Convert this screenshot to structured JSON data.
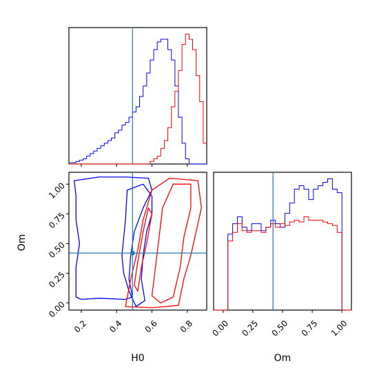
{
  "chart_data": {
    "type": "corner",
    "parameters": [
      "H0",
      "Om"
    ],
    "truth": {
      "H0": 0.49,
      "Om": 0.42
    },
    "truth_color": "#1f77b4",
    "series": [
      {
        "color": "#0000ff"
      },
      {
        "color": "#ff0000"
      }
    ],
    "panels": {
      "h0_hist": {
        "type": "histogram",
        "xlim": [
          0.13,
          0.91
        ],
        "bin_width": 0.02,
        "series_counts": [
          [
            0.5,
            0.5,
            1,
            1.5,
            2,
            3,
            4,
            5,
            6,
            7,
            8,
            9,
            10,
            12,
            13,
            15,
            16,
            18,
            20,
            22,
            26,
            30,
            35,
            40,
            44,
            47,
            48,
            48,
            44,
            40,
            30,
            18,
            8,
            2,
            0,
            0,
            0,
            0,
            0
          ],
          [
            0,
            0,
            0,
            0,
            0,
            0,
            0,
            0,
            0,
            0,
            0,
            0,
            0,
            0,
            0,
            0,
            0,
            0,
            0,
            0,
            0,
            0,
            0,
            1,
            2,
            3,
            6,
            9,
            14,
            22,
            28,
            36,
            46,
            50,
            48,
            44,
            34,
            24,
            8
          ]
        ]
      },
      "om_hist": {
        "type": "histogram",
        "xlim": [
          -0.08,
          1.08
        ],
        "x_ticks": [
          "0.00",
          "0.25",
          "0.50",
          "0.75",
          "1.00"
        ],
        "xlabel": "Om",
        "bin_width": 0.04,
        "series_counts": [
          [
            0,
            0,
            0,
            44,
            50,
            54,
            48,
            46,
            50,
            50,
            46,
            48,
            52,
            50,
            48,
            56,
            62,
            70,
            72,
            70,
            64,
            70,
            72,
            74,
            76,
            70,
            68,
            0,
            0,
            0
          ],
          [
            0,
            0,
            0,
            40,
            45,
            50,
            46,
            45,
            46,
            46,
            45,
            48,
            50,
            48,
            50,
            49,
            51,
            52,
            51,
            54,
            52,
            52,
            52,
            51,
            50,
            49,
            45,
            0,
            0,
            0
          ]
        ]
      },
      "contour": {
        "type": "contour",
        "xlim": [
          0.13,
          0.91
        ],
        "ylim": [
          -0.06,
          1.1
        ],
        "x_ticks": [
          "0.2",
          "0.4",
          "0.6",
          "0.8"
        ],
        "y_ticks": [
          "0.00",
          "0.25",
          "0.50",
          "0.75",
          "1.00"
        ],
        "xlabel": "H0",
        "ylabel": "Om",
        "contours": [
          {
            "series": 0,
            "points": [
              [
                0.17,
                0.05
              ],
              [
                0.17,
                0.3
              ],
              [
                0.19,
                0.5
              ],
              [
                0.17,
                0.7
              ],
              [
                0.17,
                0.9
              ],
              [
                0.16,
                1.03
              ],
              [
                0.3,
                1.06
              ],
              [
                0.45,
                1.06
              ],
              [
                0.58,
                1.05
              ],
              [
                0.6,
                0.95
              ],
              [
                0.55,
                0.8
              ],
              [
                0.5,
                0.6
              ],
              [
                0.48,
                0.4
              ],
              [
                0.47,
                0.2
              ],
              [
                0.49,
                0.05
              ],
              [
                0.45,
                0.03
              ],
              [
                0.3,
                0.04
              ],
              [
                0.2,
                0.03
              ],
              [
                0.17,
                0.05
              ]
            ]
          },
          {
            "series": 0,
            "points": [
              [
                0.43,
                0.4
              ],
              [
                0.45,
                0.7
              ],
              [
                0.46,
                0.95
              ],
              [
                0.55,
                1.0
              ],
              [
                0.6,
                0.9
              ],
              [
                0.6,
                0.75
              ],
              [
                0.57,
                0.6
              ],
              [
                0.55,
                0.4
              ],
              [
                0.54,
                0.2
              ],
              [
                0.56,
                0.02
              ],
              [
                0.51,
                -0.03
              ],
              [
                0.47,
                0.1
              ],
              [
                0.44,
                0.25
              ],
              [
                0.43,
                0.4
              ]
            ]
          },
          {
            "series": 1,
            "points": [
              [
                0.45,
                -0.03
              ],
              [
                0.48,
                0.2
              ],
              [
                0.52,
                0.45
              ],
              [
                0.55,
                0.7
              ],
              [
                0.6,
                0.95
              ],
              [
                0.7,
                1.05
              ],
              [
                0.86,
                1.03
              ],
              [
                0.88,
                0.8
              ],
              [
                0.85,
                0.6
              ],
              [
                0.82,
                0.4
              ],
              [
                0.78,
                0.2
              ],
              [
                0.75,
                -0.02
              ],
              [
                0.6,
                -0.04
              ],
              [
                0.45,
                -0.03
              ]
            ]
          },
          {
            "series": 1,
            "points": [
              [
                0.6,
                0.06
              ],
              [
                0.62,
                0.3
              ],
              [
                0.64,
                0.55
              ],
              [
                0.66,
                0.8
              ],
              [
                0.72,
                1.0
              ],
              [
                0.82,
                1.0
              ],
              [
                0.82,
                0.8
              ],
              [
                0.78,
                0.55
              ],
              [
                0.76,
                0.3
              ],
              [
                0.72,
                0.05
              ],
              [
                0.65,
                0.0
              ],
              [
                0.6,
                0.06
              ]
            ]
          },
          {
            "series": 1,
            "points": [
              [
                0.5,
                0.15
              ],
              [
                0.52,
                0.35
              ],
              [
                0.55,
                0.6
              ],
              [
                0.58,
                0.8
              ],
              [
                0.6,
                0.75
              ],
              [
                0.57,
                0.5
              ],
              [
                0.54,
                0.3
              ],
              [
                0.52,
                0.1
              ],
              [
                0.5,
                0.15
              ]
            ]
          }
        ]
      }
    }
  }
}
